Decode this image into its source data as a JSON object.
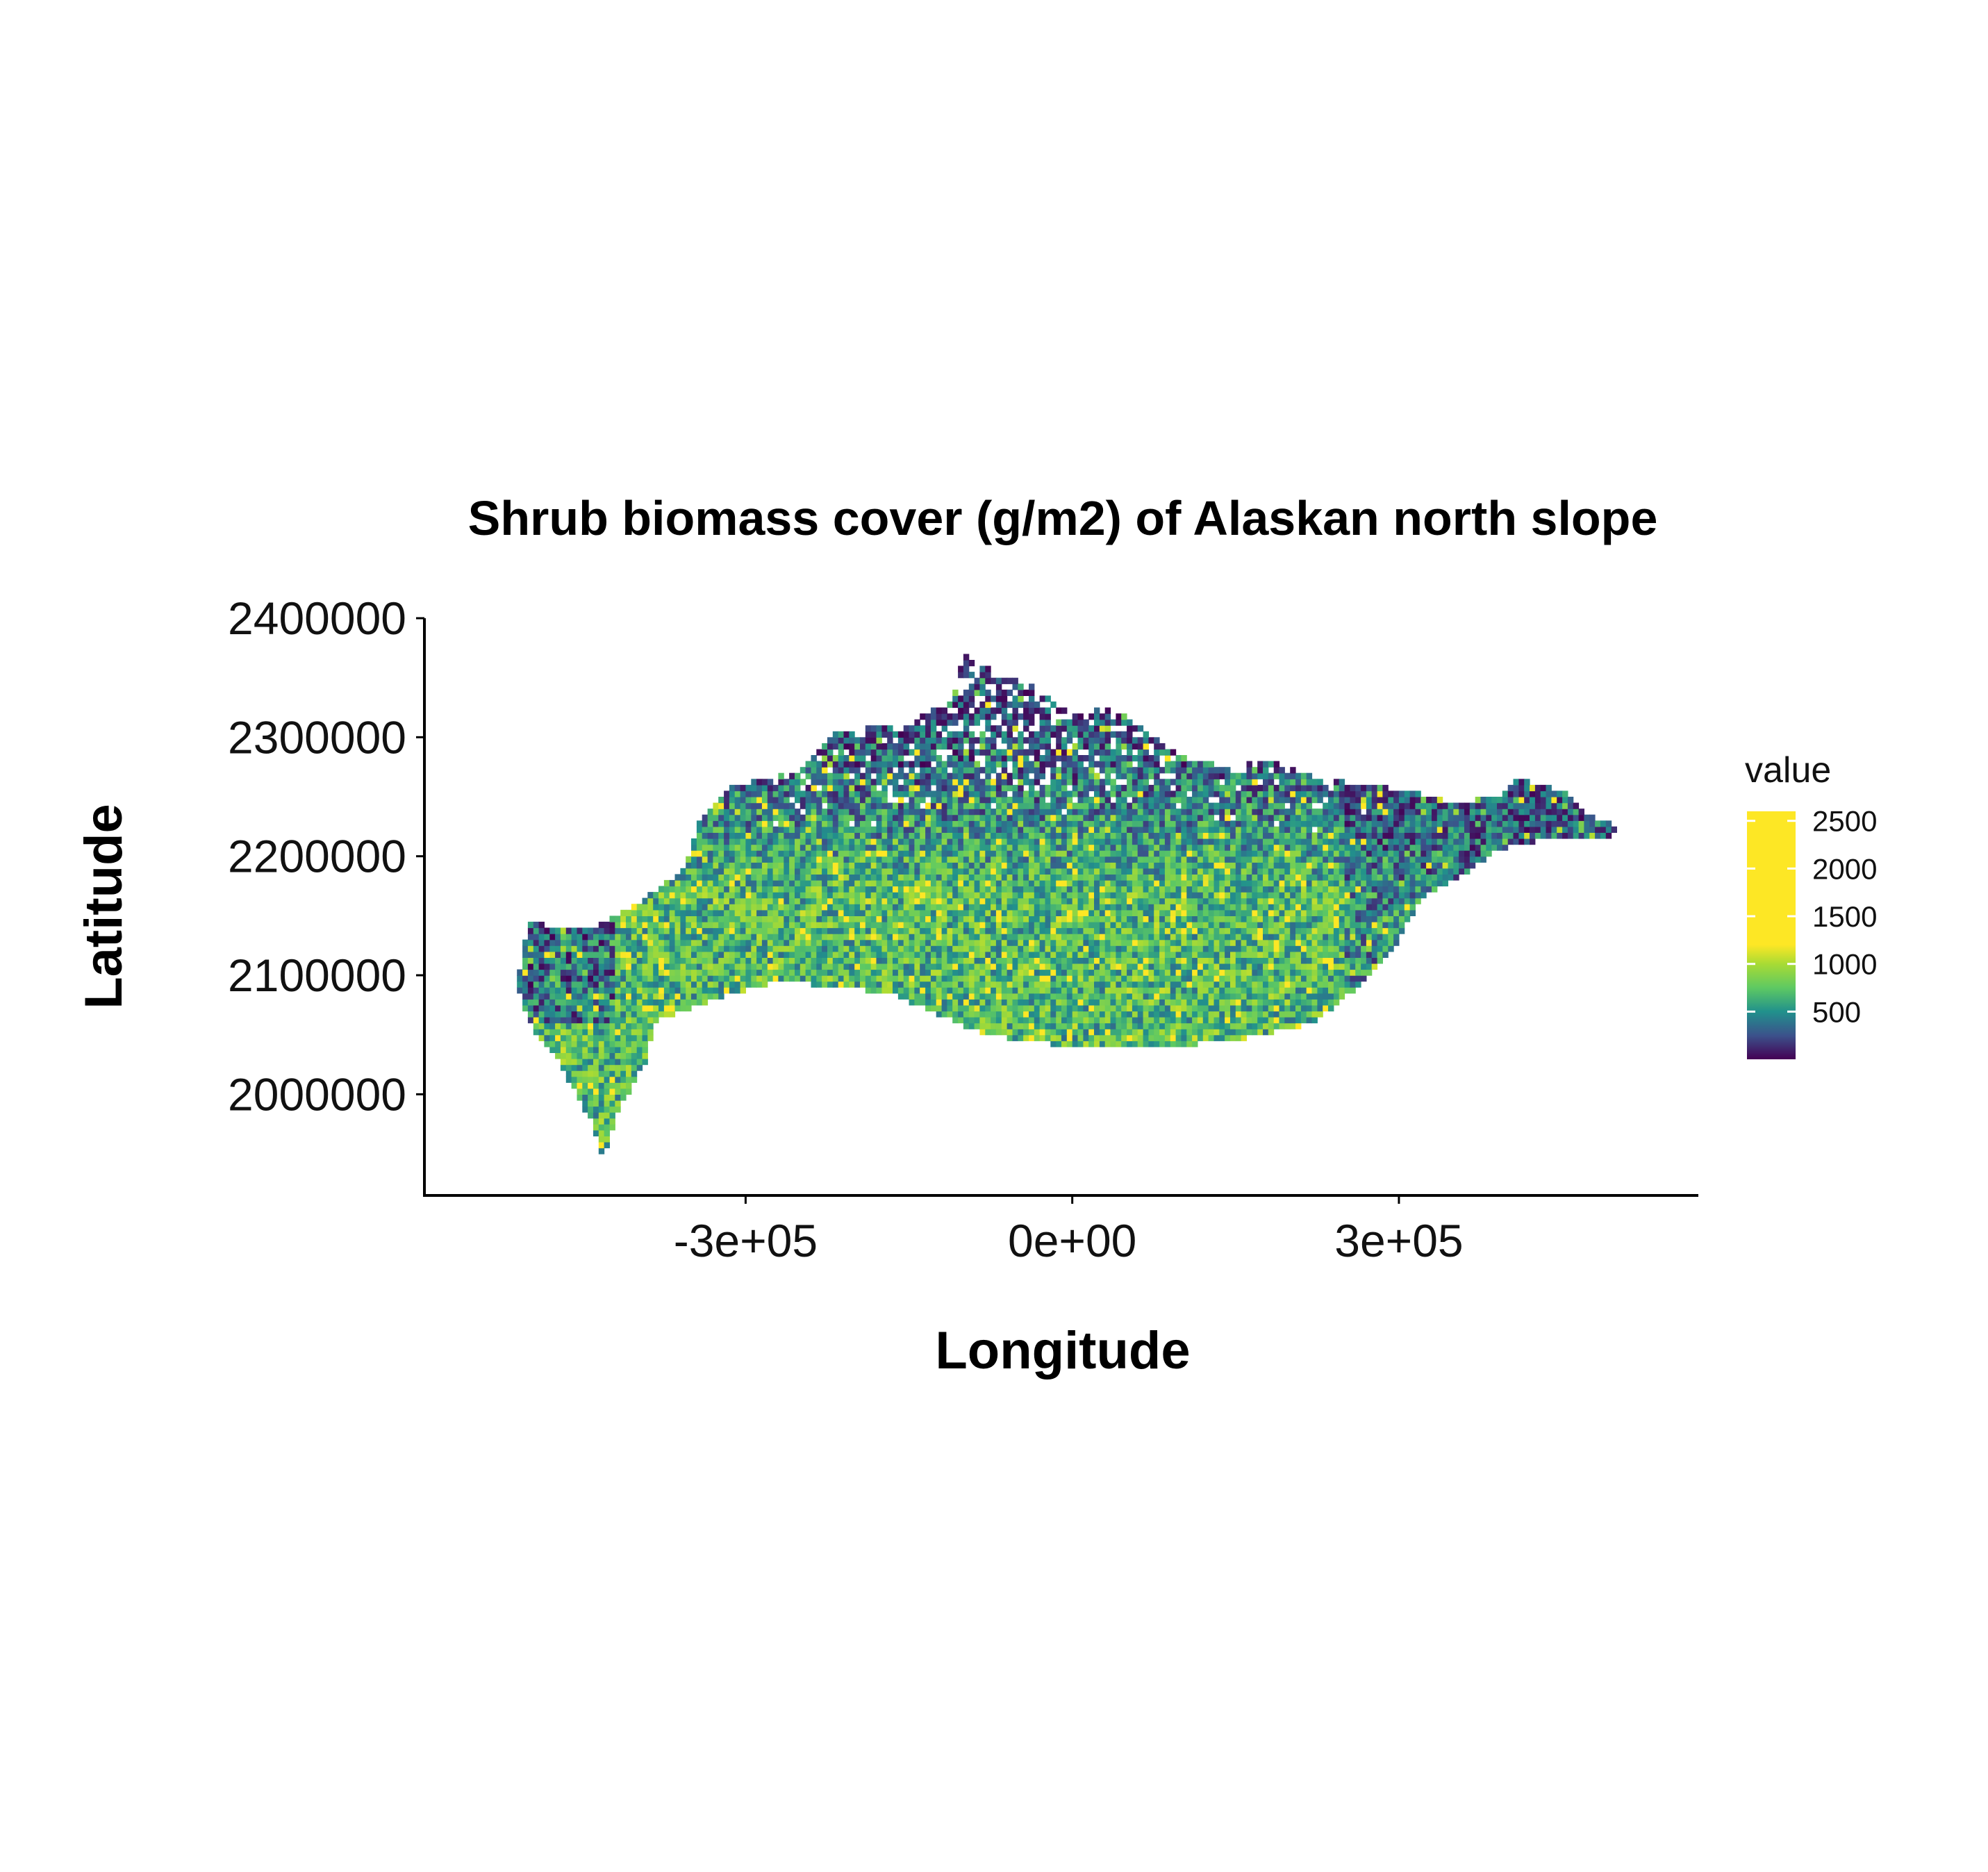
{
  "chart_data": {
    "type": "heatmap",
    "title": "Shrub biomass cover (g/m2) of Alaskan north slope",
    "xlabel": "Longitude",
    "ylabel": "Latitude",
    "xlim": [
      -595000,
      575000
    ],
    "ylim": [
      1915000,
      2400000
    ],
    "x_ticks": [
      {
        "value": -300000,
        "label": "-3e+05"
      },
      {
        "value": 0,
        "label": "0e+00"
      },
      {
        "value": 300000,
        "label": "3e+05"
      }
    ],
    "y_ticks": [
      {
        "value": 2000000,
        "label": "2000000"
      },
      {
        "value": 2100000,
        "label": "2100000"
      },
      {
        "value": 2200000,
        "label": "2200000"
      },
      {
        "value": 2300000,
        "label": "2300000"
      },
      {
        "value": 2400000,
        "label": "2400000"
      }
    ],
    "grid": false,
    "legend": {
      "title": "value",
      "placement": "right",
      "colormap": "viridis",
      "range": [
        0,
        2600
      ],
      "ticks": [
        {
          "value": 500,
          "label": "500"
        },
        {
          "value": 1000,
          "label": "1000"
        },
        {
          "value": 1500,
          "label": "1500"
        },
        {
          "value": 2000,
          "label": "2000"
        },
        {
          "value": 2500,
          "label": "2500"
        }
      ],
      "stops": [
        {
          "value": 0,
          "color": "#440154"
        },
        {
          "value": 250,
          "color": "#3b528b"
        },
        {
          "value": 500,
          "color": "#21918c"
        },
        {
          "value": 750,
          "color": "#5ec962"
        },
        {
          "value": 1000,
          "color": "#a8db34"
        },
        {
          "value": 1200,
          "color": "#fde725"
        },
        {
          "value": 2600,
          "color": "#fde725"
        }
      ]
    },
    "region_outline": [
      [
        -510000,
        2090000
      ],
      [
        -500000,
        2145000
      ],
      [
        -470000,
        2140000
      ],
      [
        -440000,
        2140000
      ],
      [
        -400000,
        2160000
      ],
      [
        -355000,
        2190000
      ],
      [
        -340000,
        2235000
      ],
      [
        -310000,
        2260000
      ],
      [
        -255000,
        2270000
      ],
      [
        -215000,
        2305000
      ],
      [
        -160000,
        2310000
      ],
      [
        -110000,
        2330000
      ],
      [
        -100000,
        2370000
      ],
      [
        -70000,
        2355000
      ],
      [
        -30000,
        2340000
      ],
      [
        0,
        2320000
      ],
      [
        40000,
        2325000
      ],
      [
        75000,
        2300000
      ],
      [
        100000,
        2285000
      ],
      [
        140000,
        2275000
      ],
      [
        180000,
        2280000
      ],
      [
        230000,
        2265000
      ],
      [
        270000,
        2260000
      ],
      [
        310000,
        2255000
      ],
      [
        350000,
        2245000
      ],
      [
        390000,
        2250000
      ],
      [
        410000,
        2265000
      ],
      [
        450000,
        2255000
      ],
      [
        475000,
        2235000
      ],
      [
        505000,
        2225000
      ],
      [
        490000,
        2215000
      ],
      [
        440000,
        2215000
      ],
      [
        390000,
        2205000
      ],
      [
        360000,
        2185000
      ],
      [
        320000,
        2165000
      ],
      [
        300000,
        2130000
      ],
      [
        270000,
        2095000
      ],
      [
        220000,
        2060000
      ],
      [
        150000,
        2045000
      ],
      [
        80000,
        2040000
      ],
      [
        0,
        2040000
      ],
      [
        -80000,
        2050000
      ],
      [
        -130000,
        2070000
      ],
      [
        -165000,
        2085000
      ],
      [
        -210000,
        2090000
      ],
      [
        -270000,
        2095000
      ],
      [
        -330000,
        2080000
      ],
      [
        -385000,
        2060000
      ],
      [
        -390000,
        2030000
      ],
      [
        -415000,
        1990000
      ],
      [
        -430000,
        1945000
      ],
      [
        -440000,
        1975000
      ],
      [
        -470000,
        2025000
      ],
      [
        -495000,
        2055000
      ]
    ],
    "cell_size": 5000,
    "value_range": [
      0,
      2600
    ]
  }
}
